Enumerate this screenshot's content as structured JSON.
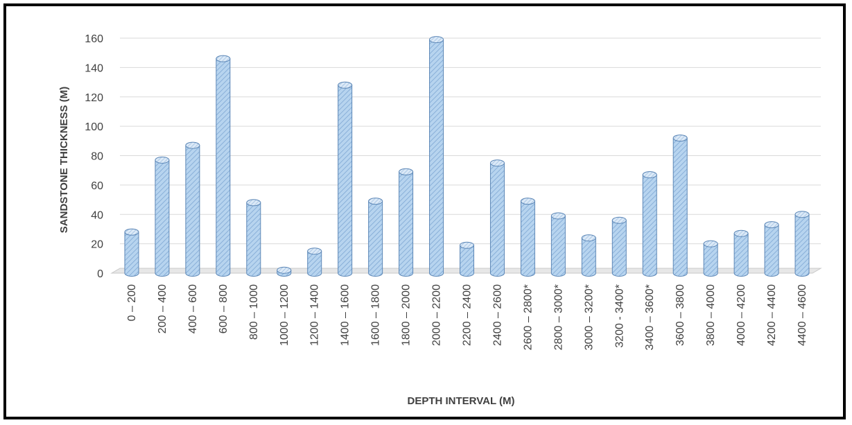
{
  "chart_data": {
    "type": "bar",
    "title": "",
    "xlabel": "DEPTH INTERVAL (M)",
    "ylabel": "SANDSTONE THICKNESS (M)",
    "ylim": [
      0,
      160
    ],
    "yticks": [
      0,
      20,
      40,
      60,
      80,
      100,
      120,
      140,
      160
    ],
    "grid": true,
    "legend": "none",
    "bar_color": "#9dc3e6",
    "bar_edge_color": "#5b86b6",
    "categories": [
      "0 – 200",
      "200 – 400",
      "400 – 600",
      "600 – 800",
      "800 – 1000",
      "1000 – 1200",
      "1200 – 1400",
      "1400 – 1600",
      "1600 – 1800",
      "1800 – 2000",
      "2000 – 2200",
      "2200 – 2400",
      "2400 – 2600",
      "2600 – 2800*",
      "2800 – 3000*",
      "3000 – 3200*",
      "3200 - 3400*",
      "3400 – 3600*",
      "3600 – 3800",
      "3800 – 4000",
      "4000 – 4200",
      "4200 – 4400",
      "4400 – 4600"
    ],
    "values": [
      28,
      77,
      87,
      146,
      48,
      2,
      15,
      128,
      49,
      69,
      159,
      19,
      75,
      49,
      39,
      24,
      36,
      67,
      92,
      20,
      27,
      33,
      40
    ]
  }
}
